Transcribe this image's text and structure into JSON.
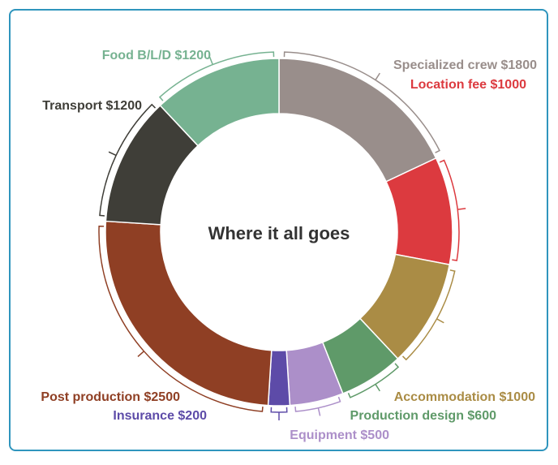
{
  "chart_data": {
    "type": "pie",
    "variant": "donut",
    "title": "Where it all goes",
    "slices": [
      {
        "label": "Specialized crew",
        "value_label": "$1800",
        "value": 1800,
        "color": "#998e8b"
      },
      {
        "label": "Location fee",
        "value_label": "$1000",
        "value": 1000,
        "color": "#dc3a3f"
      },
      {
        "label": "Accommodation",
        "value_label": "$1000",
        "value": 1000,
        "color": "#aa8c45"
      },
      {
        "label": "Production design",
        "value_label": "$600",
        "value": 600,
        "color": "#5f9a69"
      },
      {
        "label": "Equipment",
        "value_label": "$500",
        "value": 500,
        "color": "#ac8fc9"
      },
      {
        "label": "Insurance",
        "value_label": "$200",
        "value": 200,
        "color": "#5d4ba8"
      },
      {
        "label": "Post production",
        "value_label": "$2500",
        "value": 2500,
        "color": "#8f3f24"
      },
      {
        "label": "Transport",
        "value_label": "$1200",
        "value": 1200,
        "color": "#3f3e38"
      },
      {
        "label": "Food B/L/D",
        "value_label": "$1200",
        "value": 1200,
        "color": "#76b291"
      }
    ]
  }
}
